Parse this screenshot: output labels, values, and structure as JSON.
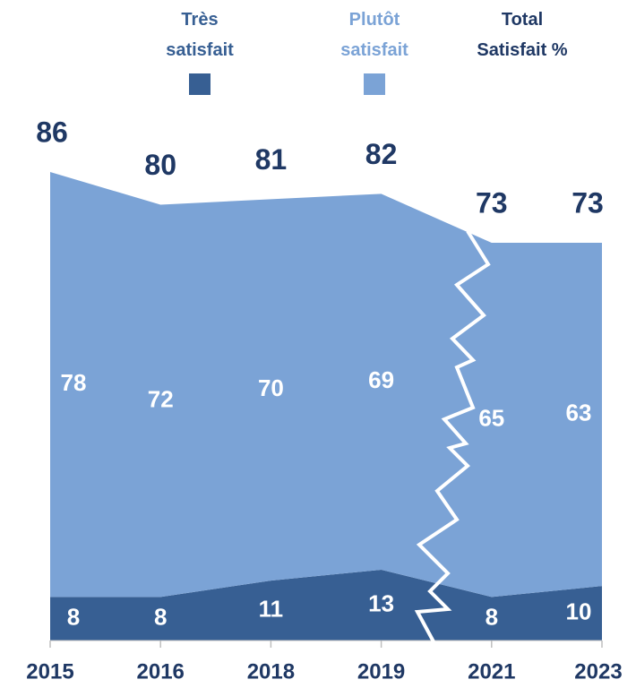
{
  "chart_data": {
    "type": "stacked-area",
    "categories": [
      "2015",
      "2016",
      "2018",
      "2019",
      "2021",
      "2023"
    ],
    "series": [
      {
        "name": "Très satisfait",
        "color": "#375f93",
        "values": [
          8,
          8,
          11,
          13,
          8,
          10
        ]
      },
      {
        "name": "Plutôt satisfait",
        "color": "#7ba3d6",
        "values": [
          78,
          72,
          70,
          69,
          65,
          63
        ]
      }
    ],
    "totals_title": "Total Satisfait %",
    "totals": [
      86,
      80,
      81,
      82,
      73,
      73
    ],
    "totals_color": "#1f3864"
  }
}
